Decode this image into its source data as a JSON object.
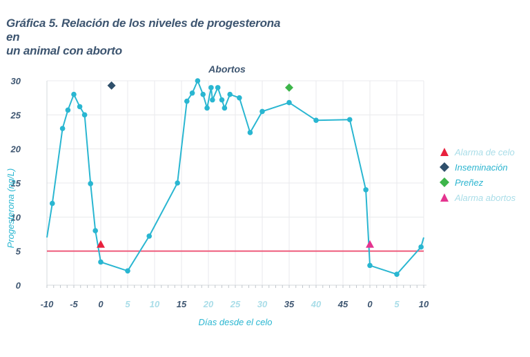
{
  "title_lines": [
    "Gráfica 5. Relación de los niveles de progesterona en",
    "un animal con aborto"
  ],
  "chart_data": {
    "type": "line",
    "title": "Gráfica 5. Relación de los niveles de progesterona en un animal con aborto",
    "xlabel": "Días desde el celo",
    "ylabel": "Progesterona (ng/L)",
    "ylim": [
      0,
      30
    ],
    "yticks": [
      0,
      5,
      10,
      15,
      20,
      25,
      30
    ],
    "xticks": [
      {
        "label": "-10",
        "pos": 0,
        "faded": false
      },
      {
        "label": "-5",
        "pos": 1,
        "faded": false
      },
      {
        "label": "0",
        "pos": 2,
        "faded": false
      },
      {
        "label": "5",
        "pos": 3,
        "faded": true
      },
      {
        "label": "10",
        "pos": 4,
        "faded": true
      },
      {
        "label": "15",
        "pos": 5,
        "faded": false
      },
      {
        "label": "20",
        "pos": 6,
        "faded": true
      },
      {
        "label": "25",
        "pos": 7,
        "faded": true
      },
      {
        "label": "30",
        "pos": 8,
        "faded": true
      },
      {
        "label": "35",
        "pos": 9,
        "faded": false
      },
      {
        "label": "40",
        "pos": 10,
        "faded": true
      },
      {
        "label": "45",
        "pos": 11,
        "faded": false
      },
      {
        "label": "0",
        "pos": 12,
        "faded": false
      },
      {
        "label": "5",
        "pos": 13,
        "faded": true
      },
      {
        "label": "10",
        "pos": 14,
        "faded": false
      }
    ],
    "grid": true,
    "threshold": 5,
    "annotation": {
      "text": "Abortos",
      "pos": 7.0
    },
    "series": [
      {
        "name": "Progesterona",
        "color": "#29b6d1",
        "points": [
          [
            0,
            7
          ],
          [
            0.2,
            12
          ],
          [
            0.58,
            23
          ],
          [
            0.78,
            25.7
          ],
          [
            1.0,
            28
          ],
          [
            1.22,
            26.2
          ],
          [
            1.4,
            25
          ],
          [
            1.62,
            14.9
          ],
          [
            1.8,
            8
          ],
          [
            2.0,
            3.4
          ],
          [
            3.0,
            2.1
          ],
          [
            3.8,
            7.2
          ],
          [
            4.85,
            15
          ],
          [
            5.2,
            27
          ],
          [
            5.4,
            28.2
          ],
          [
            5.6,
            30
          ],
          [
            5.8,
            28
          ],
          [
            5.95,
            26
          ],
          [
            6.1,
            29
          ],
          [
            6.15,
            27.2
          ],
          [
            6.35,
            29
          ],
          [
            6.5,
            27.2
          ],
          [
            6.6,
            26
          ],
          [
            6.8,
            28
          ],
          [
            7.15,
            27.5
          ],
          [
            7.55,
            22.4
          ],
          [
            8.0,
            25.5
          ],
          [
            9.0,
            26.8
          ],
          [
            10.0,
            24.2
          ],
          [
            11.25,
            24.3
          ],
          [
            11.85,
            14
          ],
          [
            12.0,
            2.9
          ],
          [
            13.0,
            1.6
          ],
          [
            13.9,
            5.6
          ],
          [
            14.0,
            7
          ]
        ]
      }
    ],
    "events": [
      {
        "type": "alarma-celo",
        "pos": 2.0,
        "value": 6.0
      },
      {
        "type": "inseminacion",
        "pos": 2.4,
        "value": 29.3
      },
      {
        "type": "prenez",
        "pos": 9.0,
        "value": 29.0
      },
      {
        "type": "alarma-abortos",
        "pos": 12.0,
        "value": 6.0
      }
    ]
  },
  "legend": [
    {
      "key": "alarma-celo",
      "label": "Alarma de celo",
      "shape": "triangle",
      "color": "#e8213d",
      "faded": true
    },
    {
      "key": "inseminacion",
      "label": "Inseminación",
      "shape": "diamond",
      "color": "#2f4f6b",
      "faded": false
    },
    {
      "key": "prenez",
      "label": "Preñez",
      "shape": "diamond",
      "color": "#3db54a",
      "faded": false
    },
    {
      "key": "alarma-abortos",
      "label": "Alarma abortos",
      "shape": "triangle",
      "color": "#e4348f",
      "faded": true
    }
  ],
  "colors": {
    "line": "#29b6d1",
    "threshold": "#ee5a7a",
    "axis_text": "#3d5570",
    "faded_text": "#a9dde8",
    "grid": "#e8eaec"
  }
}
